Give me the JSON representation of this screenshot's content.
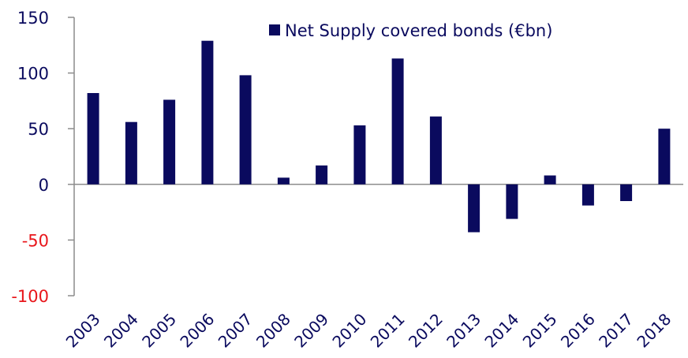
{
  "chart_data": {
    "type": "bar",
    "categories": [
      "2003",
      "2004",
      "2005",
      "2006",
      "2007",
      "2008",
      "2009",
      "2010",
      "2011",
      "2012",
      "2013",
      "2014",
      "2015",
      "2016",
      "2017",
      "2018"
    ],
    "series": [
      {
        "name": "Net Supply covered bonds (€bn)",
        "values": [
          82,
          56,
          76,
          129,
          98,
          6,
          17,
          53,
          113,
          61,
          -43,
          -31,
          8,
          -19,
          -15,
          50
        ],
        "color": "#0a0a5e"
      }
    ],
    "ylim": [
      -100,
      150
    ],
    "yticks": [
      {
        "value": 150,
        "label": "150"
      },
      {
        "value": 100,
        "label": "100"
      },
      {
        "value": 50,
        "label": "50"
      },
      {
        "value": 0,
        "label": "0"
      },
      {
        "value": -50,
        "label": "-50"
      },
      {
        "value": -100,
        "label": "-100"
      }
    ],
    "legend": {
      "position": "top-right",
      "label": "Net Supply covered bonds (€bn)"
    },
    "grid": false,
    "colors": {
      "positive_tick": "#0a0a5e",
      "negative_tick": "#e8161b",
      "axis": "#8c8c8c"
    }
  }
}
